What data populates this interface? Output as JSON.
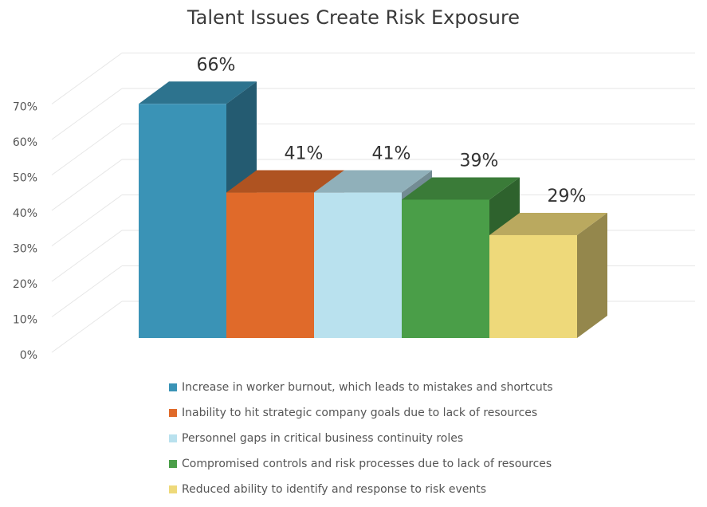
{
  "chart_data": {
    "type": "bar",
    "title": "Talent Issues Create Risk Exposure",
    "ylim": [
      0,
      70
    ],
    "yticks": [
      "0%",
      "10%",
      "20%",
      "30%",
      "40%",
      "50%",
      "60%",
      "70%"
    ],
    "grid": true,
    "legend_position": "bottom",
    "series": [
      {
        "name": "Increase in worker burnout, which leads to mistakes and shortcuts",
        "value": 66,
        "label": "66%",
        "color": "#3a93b6"
      },
      {
        "name": "Inability to hit strategic company goals due to lack of resources",
        "value": 41,
        "label": "41%",
        "color": "#e06a2a"
      },
      {
        "name": "Personnel gaps in critical business continuity roles",
        "value": 41,
        "label": "41%",
        "color": "#b9e1ee"
      },
      {
        "name": "Compromised controls and risk processes due to lack of resources",
        "value": 39,
        "label": "39%",
        "color": "#4a9e48"
      },
      {
        "name": "Reduced ability to identify and response to risk events",
        "value": 29,
        "label": "29%",
        "color": "#eed97a"
      }
    ]
  }
}
